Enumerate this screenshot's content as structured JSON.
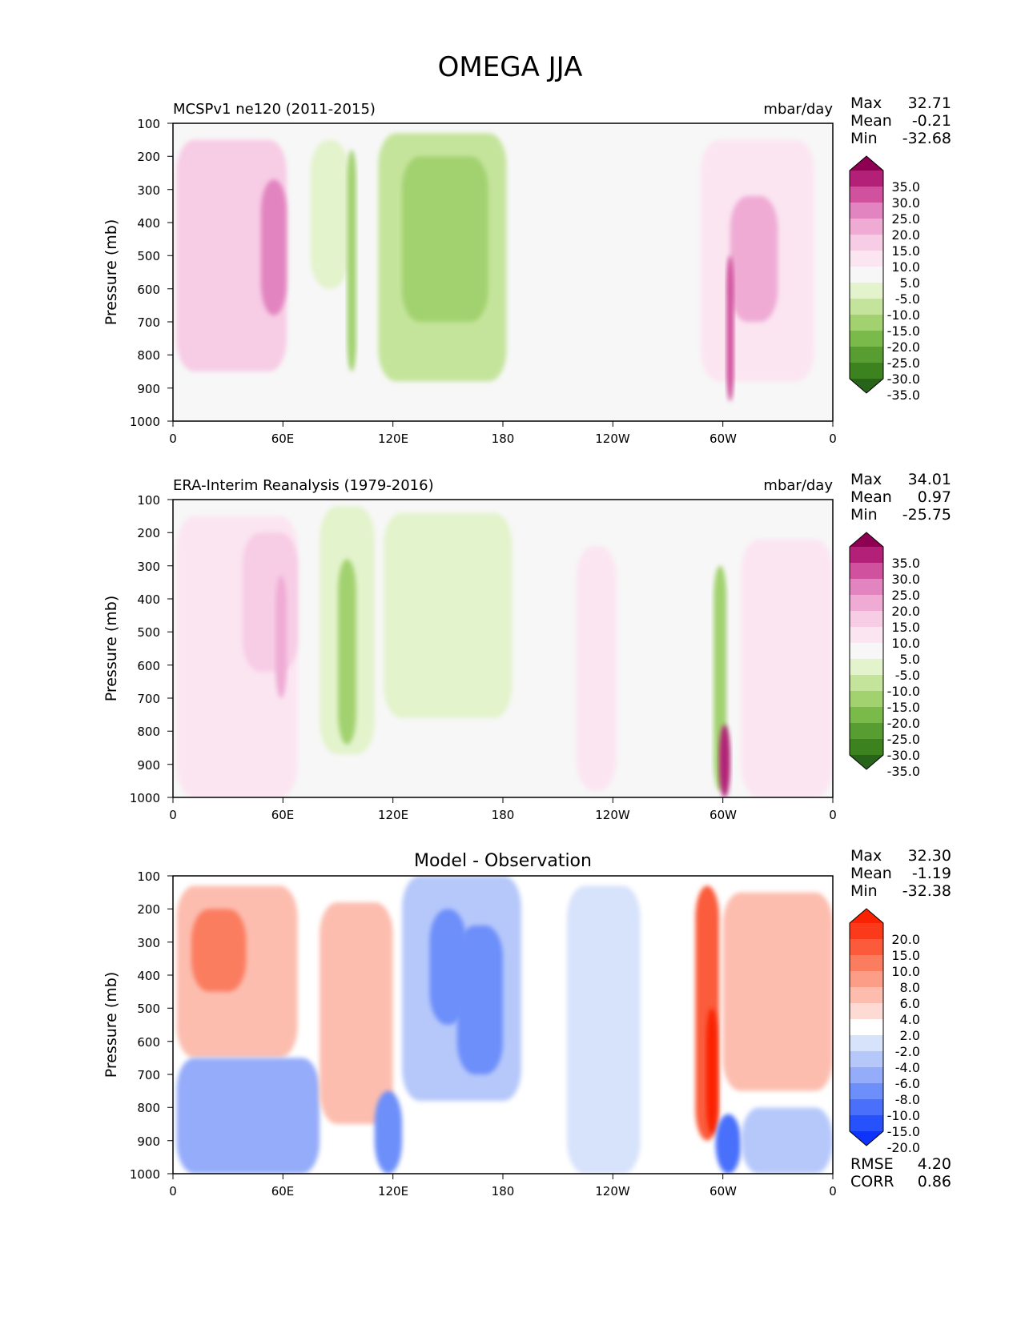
{
  "title": "OMEGA JJA",
  "colors": {
    "plot_bg": "#f7f7f7",
    "diff_bg": "#ffffff",
    "piyg": [
      "#276419",
      "#3c821e",
      "#579d31",
      "#7aba4a",
      "#a2d26f",
      "#c4e49b",
      "#e3f3cc",
      "#f7f7f7",
      "#fbe5f1",
      "#f7cce5",
      "#efabd4",
      "#e284bf",
      "#d0519d",
      "#b22077",
      "#8e0152"
    ],
    "bwr": [
      "#0e33fc",
      "#2752fb",
      "#4a70fb",
      "#6d8ffa",
      "#94acf9",
      "#b6c8fa",
      "#d7e2fb",
      "#ffffff",
      "#fddad3",
      "#fcbdaf",
      "#fb9d87",
      "#fb7d60",
      "#fb5b3a",
      "#fa3a1a",
      "#fa2200"
    ]
  },
  "panels": [
    {
      "id": "model",
      "title_left": "MCSPv1 ne120 (2011-2015)",
      "title_right": "mbar/day",
      "stats": [
        {
          "label": "Max",
          "value": "32.71"
        },
        {
          "label": "Mean",
          "value": "-0.21"
        },
        {
          "label": "Min",
          "value": "-32.68"
        }
      ]
    },
    {
      "id": "obs",
      "title_left": "ERA-Interim Reanalysis (1979-2016)",
      "title_right": "mbar/day",
      "stats": [
        {
          "label": "Max",
          "value": "34.01"
        },
        {
          "label": "Mean",
          "value": "0.97"
        },
        {
          "label": "Min",
          "value": "-25.75"
        }
      ]
    },
    {
      "id": "diff",
      "title_center": "Model - Observation",
      "stats": [
        {
          "label": "Max",
          "value": "32.30"
        },
        {
          "label": "Mean",
          "value": "-1.19"
        },
        {
          "label": "Min",
          "value": "-32.38"
        }
      ],
      "metrics": [
        {
          "label": "RMSE",
          "value": "4.20"
        },
        {
          "label": "CORR",
          "value": "0.86"
        }
      ]
    }
  ],
  "chart_data": [
    {
      "type": "heatmap",
      "title": "MCSPv1 ne120 (2011-2015)",
      "units": "mbar/day",
      "ylabel": "Pressure (mb)",
      "xticks": [
        "0",
        "60E",
        "120E",
        "180",
        "120W",
        "60W",
        "0"
      ],
      "yticks": [
        "100",
        "200",
        "300",
        "400",
        "500",
        "600",
        "700",
        "800",
        "900",
        "1000"
      ],
      "xlim": [
        0,
        360
      ],
      "ylim": [
        1000,
        100
      ],
      "colorbar_levels": [
        "35.0",
        "30.0",
        "25.0",
        "20.0",
        "15.0",
        "10.0",
        "5.0",
        "-5.0",
        "-10.0",
        "-15.0",
        "-20.0",
        "-25.0",
        "-30.0",
        "-35.0"
      ],
      "features": [
        {
          "lon": [
            2,
            62
          ],
          "p": [
            150,
            850
          ],
          "value": 10
        },
        {
          "lon": [
            48,
            62
          ],
          "p": [
            270,
            680
          ],
          "value": 20
        },
        {
          "lon": [
            75,
            96
          ],
          "p": [
            150,
            600
          ],
          "value": -10
        },
        {
          "lon": [
            95,
            100
          ],
          "p": [
            180,
            850
          ],
          "value": -20
        },
        {
          "lon": [
            112,
            182
          ],
          "p": [
            130,
            880
          ],
          "value": -12
        },
        {
          "lon": [
            125,
            172
          ],
          "p": [
            200,
            700
          ],
          "value": -20
        },
        {
          "lon": [
            288,
            350
          ],
          "p": [
            150,
            880
          ],
          "value": 8
        },
        {
          "lon": [
            304,
            330
          ],
          "p": [
            320,
            700
          ],
          "value": 15
        },
        {
          "lon": [
            302,
            306
          ],
          "p": [
            500,
            940
          ],
          "value": 28
        }
      ]
    },
    {
      "type": "heatmap",
      "title": "ERA-Interim Reanalysis (1979-2016)",
      "units": "mbar/day",
      "ylabel": "Pressure (mb)",
      "xticks": [
        "0",
        "60E",
        "120E",
        "180",
        "120W",
        "60W",
        "0"
      ],
      "yticks": [
        "100",
        "200",
        "300",
        "400",
        "500",
        "600",
        "700",
        "800",
        "900",
        "1000"
      ],
      "xlim": [
        0,
        360
      ],
      "ylim": [
        1000,
        100
      ],
      "colorbar_levels": [
        "35.0",
        "30.0",
        "25.0",
        "20.0",
        "15.0",
        "10.0",
        "5.0",
        "-5.0",
        "-10.0",
        "-15.0",
        "-20.0",
        "-25.0",
        "-30.0",
        "-35.0"
      ],
      "features": [
        {
          "lon": [
            2,
            68
          ],
          "p": [
            150,
            1000
          ],
          "value": 6
        },
        {
          "lon": [
            38,
            68
          ],
          "p": [
            200,
            620
          ],
          "value": 12
        },
        {
          "lon": [
            56,
            62
          ],
          "p": [
            330,
            700
          ],
          "value": 18
        },
        {
          "lon": [
            80,
            110
          ],
          "p": [
            120,
            870
          ],
          "value": -10
        },
        {
          "lon": [
            90,
            100
          ],
          "p": [
            280,
            840
          ],
          "value": -18
        },
        {
          "lon": [
            115,
            185
          ],
          "p": [
            140,
            760
          ],
          "value": -8
        },
        {
          "lon": [
            220,
            242
          ],
          "p": [
            240,
            980
          ],
          "value": 8
        },
        {
          "lon": [
            295,
            302
          ],
          "p": [
            300,
            980
          ],
          "value": -18
        },
        {
          "lon": [
            298,
            304
          ],
          "p": [
            780,
            1000
          ],
          "value": 30
        },
        {
          "lon": [
            310,
            360
          ],
          "p": [
            220,
            1000
          ],
          "value": 8
        }
      ]
    },
    {
      "type": "heatmap",
      "title": "Model - Observation",
      "ylabel": "Pressure (mb)",
      "xticks": [
        "0",
        "60E",
        "120E",
        "180",
        "120W",
        "60W",
        "0"
      ],
      "yticks": [
        "100",
        "200",
        "300",
        "400",
        "500",
        "600",
        "700",
        "800",
        "900",
        "1000"
      ],
      "xlim": [
        0,
        360
      ],
      "ylim": [
        1000,
        100
      ],
      "colorbar_levels": [
        "20.0",
        "15.0",
        "10.0",
        "8.0",
        "6.0",
        "4.0",
        "2.0",
        "-2.0",
        "-4.0",
        "-6.0",
        "-8.0",
        "-10.0",
        "-15.0",
        "-20.0"
      ],
      "features": [
        {
          "lon": [
            2,
            68
          ],
          "p": [
            130,
            650
          ],
          "value": 4
        },
        {
          "lon": [
            10,
            40
          ],
          "p": [
            200,
            450
          ],
          "value": 8
        },
        {
          "lon": [
            2,
            80
          ],
          "p": [
            650,
            1000
          ],
          "value": -8
        },
        {
          "lon": [
            80,
            120
          ],
          "p": [
            180,
            850
          ],
          "value": 4
        },
        {
          "lon": [
            110,
            125
          ],
          "p": [
            750,
            1000
          ],
          "value": -10
        },
        {
          "lon": [
            125,
            190
          ],
          "p": [
            100,
            780
          ],
          "value": -6
        },
        {
          "lon": [
            140,
            160
          ],
          "p": [
            200,
            550
          ],
          "value": -10
        },
        {
          "lon": [
            155,
            180
          ],
          "p": [
            250,
            700
          ],
          "value": -9
        },
        {
          "lon": [
            215,
            255
          ],
          "p": [
            130,
            1000
          ],
          "value": -3
        },
        {
          "lon": [
            285,
            298
          ],
          "p": [
            130,
            900
          ],
          "value": 10
        },
        {
          "lon": [
            291,
            297
          ],
          "p": [
            500,
            880
          ],
          "value": 20
        },
        {
          "lon": [
            296,
            310
          ],
          "p": [
            820,
            1000
          ],
          "value": -15
        },
        {
          "lon": [
            300,
            360
          ],
          "p": [
            150,
            750
          ],
          "value": 4
        },
        {
          "lon": [
            310,
            360
          ],
          "p": [
            800,
            1000
          ],
          "value": -6
        }
      ]
    }
  ]
}
